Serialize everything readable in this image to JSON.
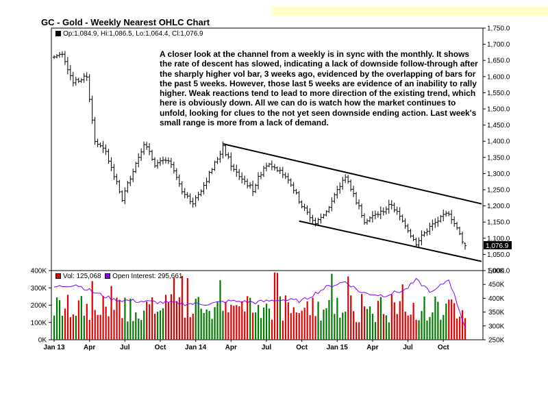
{
  "title": "GC - Gold - Weekly Nearest OHLC Chart",
  "colors": {
    "accent_band": "#ffffc8",
    "volume_up": "#007a00",
    "volume_down": "#e00000",
    "open_interest": "#8000ff",
    "price": "#000000"
  },
  "price_panel": {
    "legend": {
      "op": "Op:1,084.9",
      "hi": "Hi:1,086.5",
      "lo": "Lo:1,064.4",
      "cl": "Cl:1,076.9"
    },
    "last_price_tag": "1,076.9",
    "annotation": "A closer look at the channel from a weekly is in sync with the monthly.  It shows the rate of descent has slowed, indicating a lack of downside follow-through after the sharply higher vol bar, 3 weeks ago, evidenced by the overlapping of bars for the past 5 weeks.  However, those last 5 weeks are evidence of an inability to rally higher.  Weak reactions tend to lead to more direction of the existing trend, which here is obviously down.  All we can do is watch how the market continues to unfold, looking for clues to the not yet seen downside ending action.  Last week's small range is more from a lack of demand.",
    "y_ticks": [
      "1,750.0",
      "1,700.0",
      "1,650.0",
      "1,600.0",
      "1,550.0",
      "1,500.0",
      "1,450.0",
      "1,400.0",
      "1,350.0",
      "1,300.0",
      "1,250.0",
      "1,200.0",
      "1,150.0",
      "1,100.0",
      "1,050.0",
      "1,000.0"
    ]
  },
  "volume_panel": {
    "legend": {
      "vol": "Vol: 125,068",
      "oi": "Open Interest: 295,661"
    },
    "left_ticks": [
      "400K",
      "300K",
      "200K",
      "100K",
      "0K"
    ],
    "right_ticks": [
      "500K",
      "450K",
      "400K",
      "350K",
      "300K",
      "250K"
    ]
  },
  "x_ticks": [
    "Jan 13",
    "Apr",
    "Jul",
    "Oct",
    "Jan 14",
    "Apr",
    "Jul",
    "Oct",
    "Jan 15",
    "Apr",
    "Jul",
    "Oct"
  ],
  "chart_data": {
    "type": "ohlc",
    "title": "GC - Gold - Weekly Nearest OHLC Chart",
    "x_range": [
      "2013-01-04",
      "2015-11-27"
    ],
    "ylim": [
      1000,
      1750
    ],
    "volume_ylim": [
      0,
      400000
    ],
    "open_interest_ylim": [
      250000,
      500000
    ],
    "last_bar": {
      "open": 1084.9,
      "high": 1086.5,
      "low": 1064.4,
      "close": 1076.9,
      "volume": 125068,
      "open_interest": 295661
    },
    "channel_lines": [
      {
        "name": "upper",
        "from": {
          "date": "2014-03-14",
          "price": 1392
        },
        "to": {
          "date": "2015-11-27",
          "price": 1198
        }
      },
      {
        "name": "lower",
        "from": {
          "date": "2014-09-26",
          "price": 1153
        },
        "to": {
          "date": "2015-11-27",
          "price": 1020
        }
      }
    ],
    "price_path": [
      {
        "date": "2013-01-04",
        "price": 1660
      },
      {
        "date": "2013-01-25",
        "price": 1675
      },
      {
        "date": "2013-02-22",
        "price": 1580
      },
      {
        "date": "2013-03-29",
        "price": 1600
      },
      {
        "date": "2013-04-19",
        "price": 1400
      },
      {
        "date": "2013-05-17",
        "price": 1365
      },
      {
        "date": "2013-06-28",
        "price": 1220
      },
      {
        "date": "2013-07-19",
        "price": 1290
      },
      {
        "date": "2013-08-23",
        "price": 1395
      },
      {
        "date": "2013-09-20",
        "price": 1330
      },
      {
        "date": "2013-10-25",
        "price": 1340
      },
      {
        "date": "2013-11-29",
        "price": 1250
      },
      {
        "date": "2013-12-27",
        "price": 1210
      },
      {
        "date": "2014-01-24",
        "price": 1265
      },
      {
        "date": "2014-03-14",
        "price": 1380
      },
      {
        "date": "2014-04-11",
        "price": 1310
      },
      {
        "date": "2014-05-30",
        "price": 1250
      },
      {
        "date": "2014-06-27",
        "price": 1320
      },
      {
        "date": "2014-07-11",
        "price": 1335
      },
      {
        "date": "2014-08-29",
        "price": 1285
      },
      {
        "date": "2014-10-03",
        "price": 1200
      },
      {
        "date": "2014-11-07",
        "price": 1145
      },
      {
        "date": "2014-12-12",
        "price": 1195
      },
      {
        "date": "2015-01-23",
        "price": 1295
      },
      {
        "date": "2015-03-13",
        "price": 1155
      },
      {
        "date": "2015-04-24",
        "price": 1180
      },
      {
        "date": "2015-05-22",
        "price": 1205
      },
      {
        "date": "2015-07-24",
        "price": 1085
      },
      {
        "date": "2015-08-28",
        "price": 1135
      },
      {
        "date": "2015-10-16",
        "price": 1180
      },
      {
        "date": "2015-11-27",
        "price": 1077
      }
    ],
    "open_interest_path": [
      {
        "date": "2013-01-04",
        "value": 440000
      },
      {
        "date": "2013-03-01",
        "value": 450000
      },
      {
        "date": "2013-04-19",
        "value": 420000
      },
      {
        "date": "2013-06-07",
        "value": 395000
      },
      {
        "date": "2013-08-02",
        "value": 390000
      },
      {
        "date": "2013-10-04",
        "value": 385000
      },
      {
        "date": "2013-12-06",
        "value": 380000
      },
      {
        "date": "2014-02-07",
        "value": 380000
      },
      {
        "date": "2014-04-04",
        "value": 390000
      },
      {
        "date": "2014-06-06",
        "value": 385000
      },
      {
        "date": "2014-08-08",
        "value": 395000
      },
      {
        "date": "2014-10-03",
        "value": 390000
      },
      {
        "date": "2014-12-05",
        "value": 440000
      },
      {
        "date": "2015-01-23",
        "value": 460000
      },
      {
        "date": "2015-03-06",
        "value": 420000
      },
      {
        "date": "2015-05-01",
        "value": 410000
      },
      {
        "date": "2015-06-26",
        "value": 430000
      },
      {
        "date": "2015-07-24",
        "value": 465000
      },
      {
        "date": "2015-09-04",
        "value": 420000
      },
      {
        "date": "2015-10-16",
        "value": 470000
      },
      {
        "date": "2015-11-27",
        "value": 296000
      }
    ],
    "volume_range": [
      100000,
      400000
    ]
  }
}
